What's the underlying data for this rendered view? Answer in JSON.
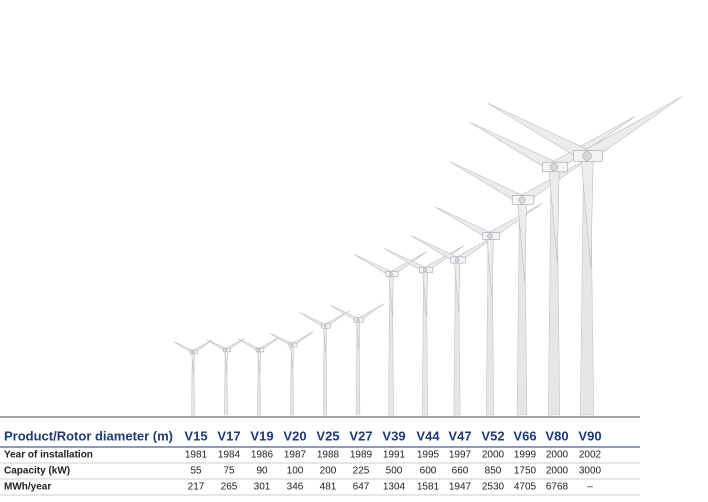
{
  "table": {
    "header": [
      "Product/Rotor diameter (m)",
      "V15",
      "V17",
      "V19",
      "V20",
      "V25",
      "V27",
      "V39",
      "V44",
      "V47",
      "V52",
      "V66",
      "V80",
      "V90"
    ],
    "rows": [
      [
        "Year of installation",
        1981,
        1984,
        1986,
        1987,
        1988,
        1989,
        1991,
        1995,
        1997,
        2000,
        1999,
        2000,
        2002
      ],
      [
        "Capacity (kW)",
        55,
        75,
        90,
        100,
        200,
        225,
        500,
        600,
        660,
        850,
        1750,
        2000,
        3000
      ],
      [
        "MWh/year",
        217,
        265,
        301,
        346,
        481,
        647,
        1304,
        1581,
        1947,
        2530,
        4705,
        6768,
        "–"
      ]
    ]
  }
}
